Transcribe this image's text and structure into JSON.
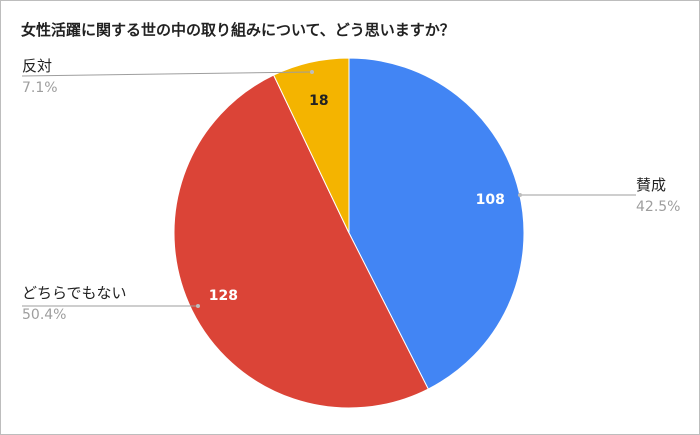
{
  "chart_data": {
    "type": "pie",
    "title": "女性活躍に関する世の中の取り組みについて、どう思いますか？",
    "slices": [
      {
        "label": "賛成",
        "value": 108,
        "value_label": "108",
        "percent_label": "42.5%",
        "color": "#4285f4"
      },
      {
        "label": "どちらでもない",
        "value": 128,
        "value_label": "128",
        "percent_label": "50.4%",
        "color": "#db4437"
      },
      {
        "label": "反対",
        "value": 18,
        "value_label": "18",
        "percent_label": "7.1%",
        "color": "#f4b400"
      }
    ],
    "start": "12 o'clock, clockwise",
    "legend": "none (labels beside slices)"
  }
}
